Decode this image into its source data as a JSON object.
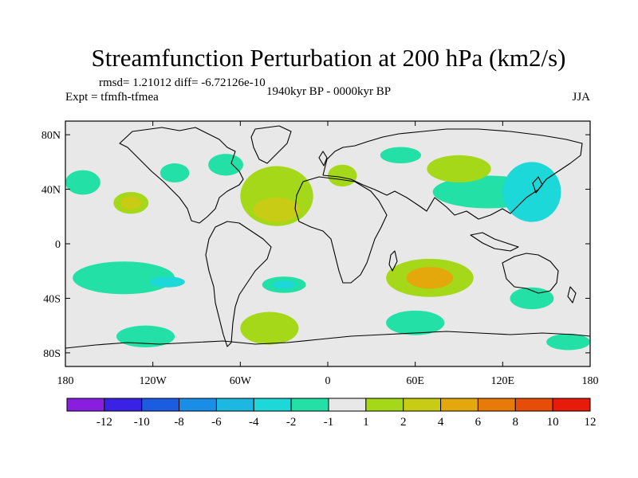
{
  "chart_data": {
    "type": "filled-contour-map",
    "title": "Streamfunction Perturbation at 200 hPa (km2/s)",
    "stats_text": "rmsd= 1.21012 diff= -6.72126e-10",
    "left_subtitle": "Expt = tfmfh-tfmea",
    "center_subtitle": "1940kyr BP - 0000kyr BP",
    "right_subtitle": "JJA",
    "xlim": [
      -180,
      180
    ],
    "ylim": [
      -90,
      90
    ],
    "x_ticks": [
      {
        "value": -180,
        "label": "180"
      },
      {
        "value": -120,
        "label": "120W"
      },
      {
        "value": -60,
        "label": "60W"
      },
      {
        "value": 0,
        "label": "0"
      },
      {
        "value": 60,
        "label": "60E"
      },
      {
        "value": 120,
        "label": "120E"
      },
      {
        "value": 180,
        "label": "180"
      }
    ],
    "y_ticks": [
      {
        "value": 80,
        "label": "80N"
      },
      {
        "value": 40,
        "label": "40N"
      },
      {
        "value": 0,
        "label": "0"
      },
      {
        "value": -40,
        "label": "40S"
      },
      {
        "value": -80,
        "label": "80S"
      }
    ],
    "color_levels": [
      "-12",
      "-10",
      "-8",
      "-6",
      "-4",
      "-2",
      "-1",
      "1",
      "2",
      "4",
      "6",
      "8",
      "10",
      "12"
    ],
    "color_bins": [
      "#8a1ee0",
      "#3a22e4",
      "#1c5ce0",
      "#1a8ee6",
      "#1cb8e2",
      "#1cd8d8",
      "#22e0a6",
      "#e8e8e8",
      "#a6d81a",
      "#c8cc14",
      "#e4a80c",
      "#e87a0a",
      "#e64e08",
      "#e81a0a"
    ],
    "field_regions": [
      {
        "name": "pacific-north-negative",
        "lon": -168,
        "lat": 45,
        "lon_radius": 12,
        "lat_radius": 9,
        "bin": 6
      },
      {
        "name": "north-america-negative",
        "lon": -105,
        "lat": 52,
        "lon_radius": 10,
        "lat_radius": 7,
        "bin": 6
      },
      {
        "name": "canada-negative",
        "lon": -70,
        "lat": 58,
        "lon_radius": 12,
        "lat_radius": 8,
        "bin": 6
      },
      {
        "name": "north-atlantic-positive",
        "lon": -35,
        "lat": 35,
        "lon_radius": 25,
        "lat_radius": 22,
        "bin": 8
      },
      {
        "name": "north-atlantic-core",
        "lon": -35,
        "lat": 25,
        "lon_radius": 16,
        "lat_radius": 9,
        "bin": 9
      },
      {
        "name": "northeast-pacific-positive",
        "lon": -135,
        "lat": 30,
        "lon_radius": 12,
        "lat_radius": 8,
        "bin": 8
      },
      {
        "name": "northeast-pacific-core",
        "lon": -135,
        "lat": 30,
        "lon_radius": 7,
        "lat_radius": 5,
        "bin": 9
      },
      {
        "name": "asia-negative",
        "lon": 110,
        "lat": 38,
        "lon_radius": 38,
        "lat_radius": 12,
        "bin": 6
      },
      {
        "name": "west-pacific-negative",
        "lon": 140,
        "lat": 38,
        "lon_radius": 20,
        "lat_radius": 22,
        "bin": 5
      },
      {
        "name": "scandinavia-positive",
        "lon": 10,
        "lat": 50,
        "lon_radius": 10,
        "lat_radius": 8,
        "bin": 8
      },
      {
        "name": "central-asia-positive",
        "lon": 90,
        "lat": 55,
        "lon_radius": 22,
        "lat_radius": 10,
        "bin": 8
      },
      {
        "name": "arctic-negative",
        "lon": 50,
        "lat": 65,
        "lon_radius": 14,
        "lat_radius": 6,
        "bin": 6
      },
      {
        "name": "south-indian-positive",
        "lon": 70,
        "lat": -25,
        "lon_radius": 30,
        "lat_radius": 14,
        "bin": 8
      },
      {
        "name": "south-indian-core",
        "lon": 70,
        "lat": -25,
        "lon_radius": 16,
        "lat_radius": 8,
        "bin": 10
      },
      {
        "name": "south-pacific-negative",
        "lon": -140,
        "lat": -25,
        "lon_radius": 35,
        "lat_radius": 12,
        "bin": 6
      },
      {
        "name": "south-pacific-core",
        "lon": -110,
        "lat": -28,
        "lon_radius": 12,
        "lat_radius": 4,
        "bin": 5
      },
      {
        "name": "south-atlantic-negative",
        "lon": -30,
        "lat": -30,
        "lon_radius": 15,
        "lat_radius": 6,
        "bin": 6
      },
      {
        "name": "south-atlantic-core",
        "lon": -30,
        "lat": -30,
        "lon_radius": 8,
        "lat_radius": 3,
        "bin": 5
      },
      {
        "name": "southern-ocean-negative",
        "lon": -125,
        "lat": -68,
        "lon_radius": 20,
        "lat_radius": 8,
        "bin": 6
      },
      {
        "name": "southern-ocean-positive",
        "lon": -40,
        "lat": -62,
        "lon_radius": 20,
        "lat_radius": 12,
        "bin": 8
      },
      {
        "name": "south-indian-negative",
        "lon": 60,
        "lat": -58,
        "lon_radius": 20,
        "lat_radius": 9,
        "bin": 6
      },
      {
        "name": "australia-negative",
        "lon": 140,
        "lat": -40,
        "lon_radius": 15,
        "lat_radius": 8,
        "bin": 6
      },
      {
        "name": "pacific-south-negative",
        "lon": 165,
        "lat": -72,
        "lon_radius": 15,
        "lat_radius": 6,
        "bin": 6
      }
    ]
  }
}
